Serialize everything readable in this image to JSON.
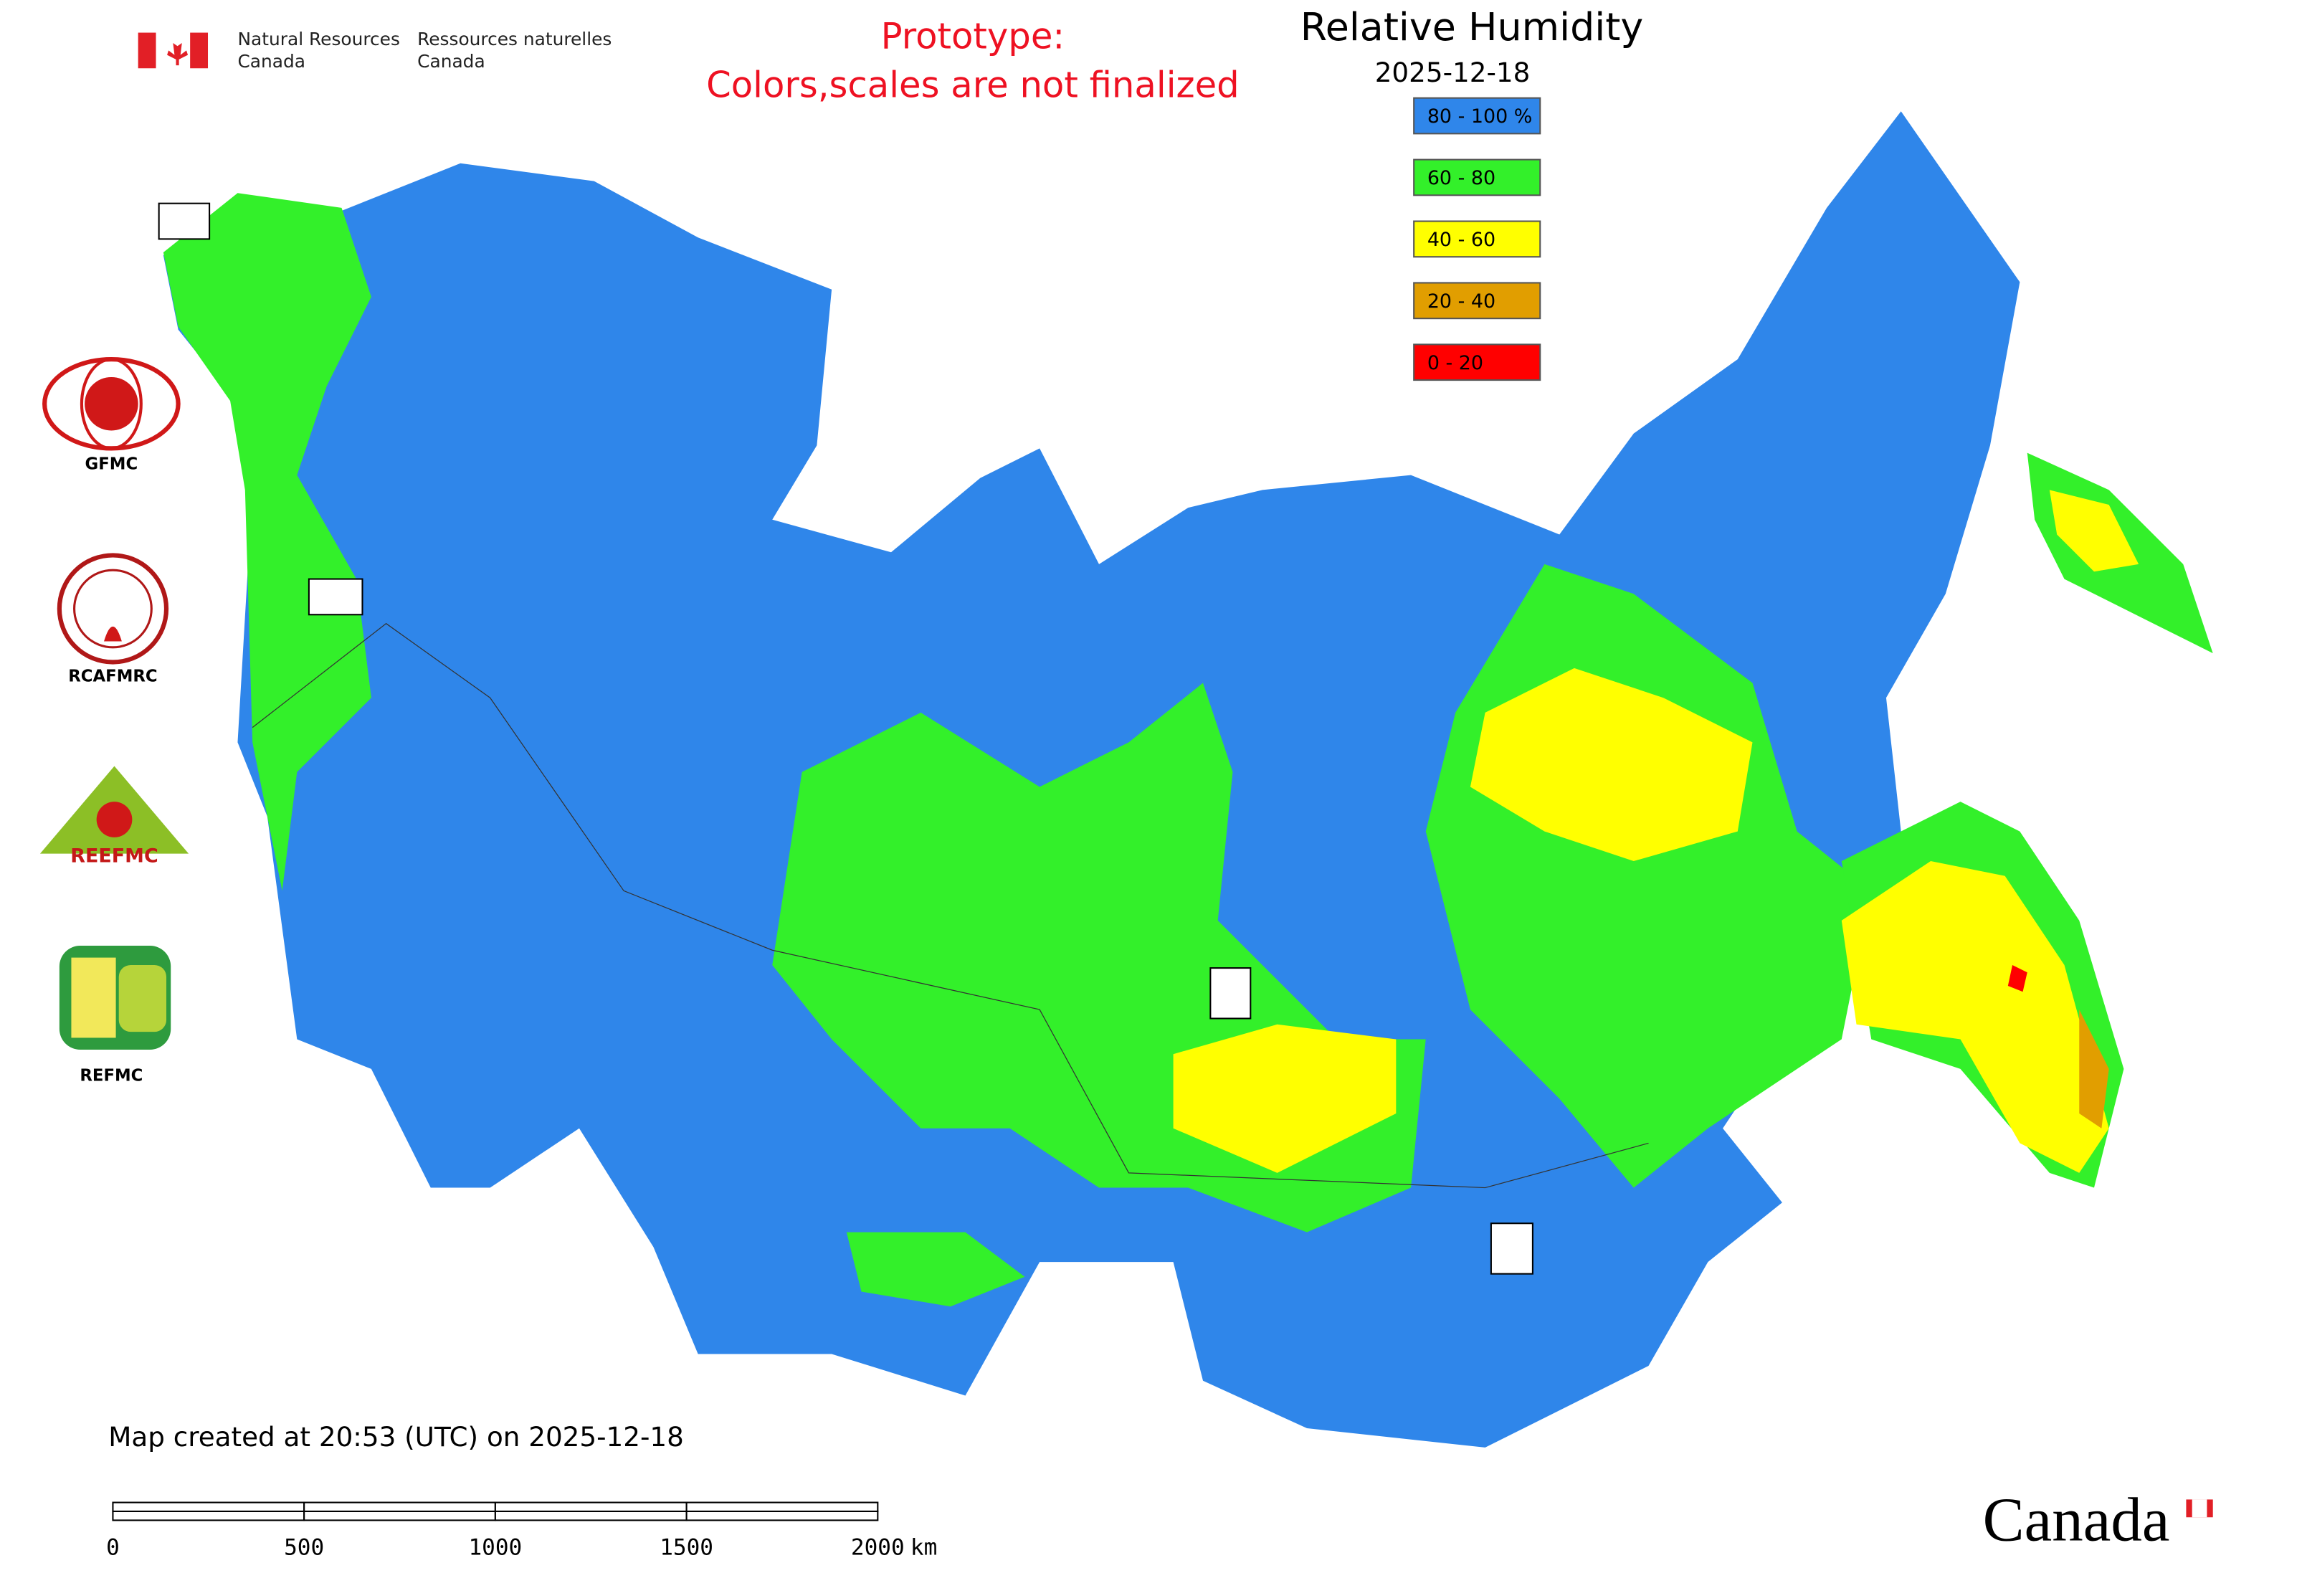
{
  "header": {
    "agency_en": [
      "Natural Resources",
      "Canada"
    ],
    "agency_fr": [
      "Ressources naturelles",
      "Canada"
    ],
    "notice": [
      "Prototype:",
      "Colors,scales are not finalized"
    ]
  },
  "title": "Relative Humidity",
  "date": "2025-12-18",
  "legend": [
    {
      "label": "80 - 100 %",
      "color": "#2f86ea"
    },
    {
      "label": "60 - 80",
      "color": "#33f02a"
    },
    {
      "label": "40 - 60",
      "color": "#ffff00"
    },
    {
      "label": "20 - 40",
      "color": "#e19e00"
    },
    {
      "label": "0 - 20",
      "color": "#ff0000"
    }
  ],
  "logos": [
    "GFMC",
    "RCAFMRC",
    "REEFMC",
    "REFMC"
  ],
  "footer": "Map created at 20:53 (UTC) on 2025-12-18",
  "scale_bar": {
    "ticks": [
      0,
      500,
      1000,
      1500,
      2000
    ],
    "unit": "km"
  },
  "wordmark": "Canada"
}
